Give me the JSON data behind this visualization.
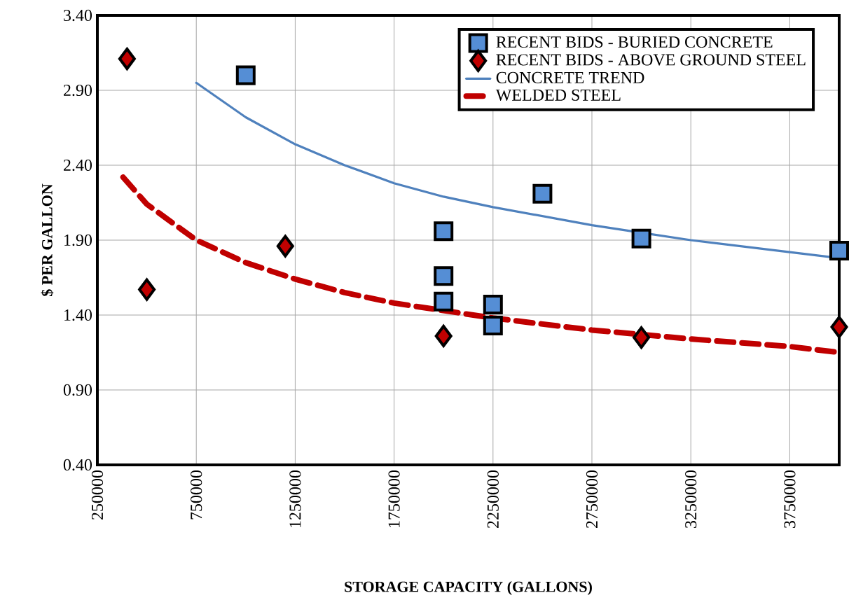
{
  "chart_data": {
    "type": "scatter",
    "xlabel": "STORAGE CAPACITY (GALLONS)",
    "ylabel": "$ PER GALLON",
    "xlim": [
      250000,
      4000000
    ],
    "ylim": [
      0.4,
      3.4
    ],
    "xticks": [
      250000,
      750000,
      1250000,
      1750000,
      2250000,
      2750000,
      3250000,
      3750000
    ],
    "yticks": [
      {
        "value": 0.4,
        "label": "0.40"
      },
      {
        "value": 0.9,
        "label": "0.90"
      },
      {
        "value": 1.4,
        "label": "1.40"
      },
      {
        "value": 1.9,
        "label": "1.90"
      },
      {
        "value": 2.4,
        "label": "2.40"
      },
      {
        "value": 2.9,
        "label": "2.90"
      },
      {
        "value": 3.4,
        "label": "3.40"
      }
    ],
    "grid": true,
    "legend": "top right",
    "series": [
      {
        "name": "RECENT BIDS - BURIED CONCRETE",
        "marker": "square",
        "color": "#558ed5",
        "x": [
          1000000,
          2000000,
          2000000,
          2000000,
          2250000,
          2250000,
          2500000,
          3000000,
          4000000
        ],
        "values": [
          3.0,
          1.96,
          1.66,
          1.49,
          1.47,
          1.33,
          2.21,
          1.91,
          1.83
        ]
      },
      {
        "name": "RECENT BIDS - ABOVE GROUND STEEL",
        "marker": "diamond",
        "color": "#c00000",
        "x": [
          400000,
          500000,
          1200000,
          2000000,
          3000000,
          4000000
        ],
        "values": [
          3.11,
          1.57,
          1.86,
          1.26,
          1.25,
          1.32
        ]
      },
      {
        "name": "CONCRETE TREND",
        "type": "line",
        "marker": "none",
        "line_style": "solid",
        "color": "#4f81bd",
        "x": [
          750000,
          1000000,
          1250000,
          1500000,
          1750000,
          2000000,
          2250000,
          2750000,
          3000000,
          3250000,
          3750000,
          4000000
        ],
        "values": [
          2.95,
          2.72,
          2.54,
          2.4,
          2.28,
          2.19,
          2.12,
          2.0,
          1.95,
          1.9,
          1.82,
          1.78
        ]
      },
      {
        "name": "WELDED STEEL",
        "type": "line",
        "marker": "none",
        "line_style": "dashed",
        "color": "#c00000",
        "x": [
          380000,
          500000,
          750000,
          1000000,
          1250000,
          1500000,
          1750000,
          2000000,
          2250000,
          2750000,
          3250000,
          3750000,
          4000000
        ],
        "values": [
          2.32,
          2.14,
          1.9,
          1.75,
          1.64,
          1.55,
          1.48,
          1.43,
          1.38,
          1.3,
          1.24,
          1.19,
          1.15
        ]
      }
    ]
  }
}
